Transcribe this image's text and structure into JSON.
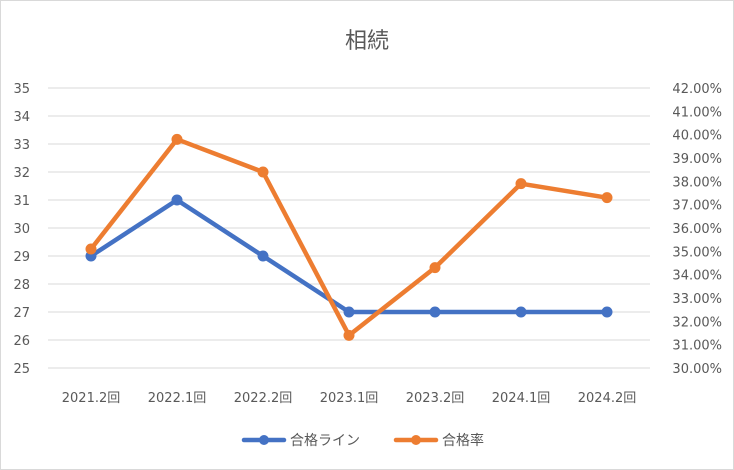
{
  "chart_data": {
    "type": "line",
    "title": "相続",
    "categories": [
      "2021.2回",
      "2022.1回",
      "2022.2回",
      "2023.1回",
      "2023.2回",
      "2024.1回",
      "2024.2回"
    ],
    "y_left": {
      "min": 25,
      "max": 35,
      "step": 1
    },
    "y_right": {
      "min": 30.0,
      "max": 42.0,
      "step": 1.0,
      "format": "percent_2dp"
    },
    "grid": true,
    "legend_position": "bottom",
    "series": [
      {
        "name": "合格ライン",
        "axis": "left",
        "color": "#4472c4",
        "values": [
          29,
          31,
          29,
          27,
          27,
          27,
          27
        ]
      },
      {
        "name": "合格率",
        "axis": "right",
        "color": "#ed7d31",
        "values": [
          35.1,
          39.8,
          38.4,
          31.4,
          34.3,
          37.9,
          37.3
        ]
      }
    ]
  }
}
